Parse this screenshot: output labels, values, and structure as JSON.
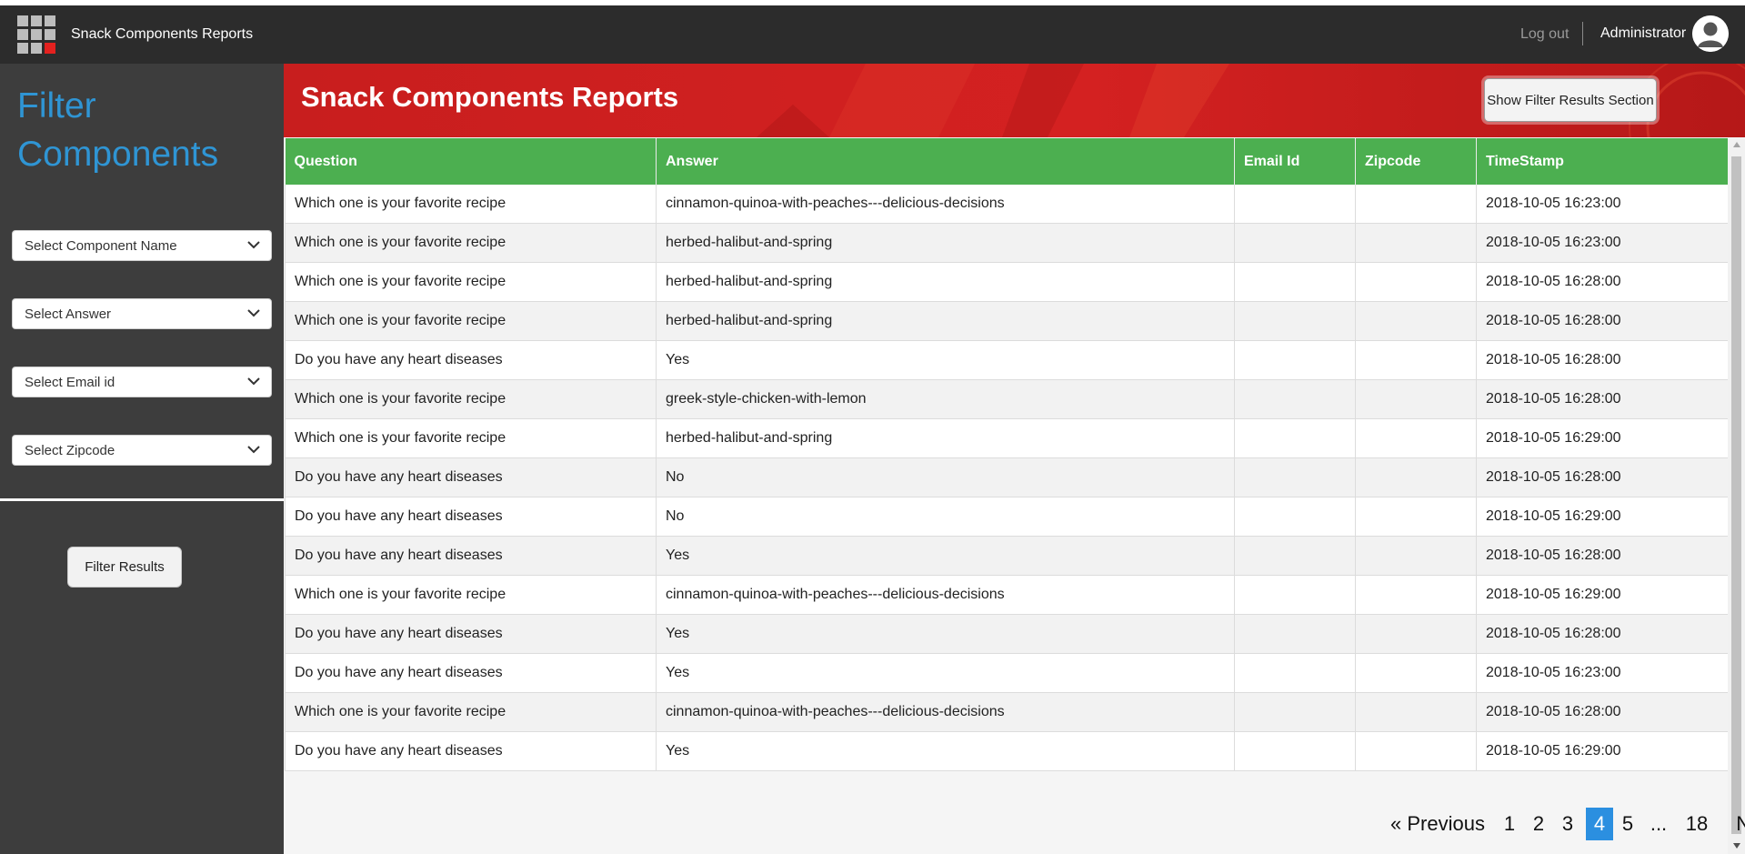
{
  "header": {
    "app_title": "Snack Components Reports",
    "logout_label": "Log out",
    "user_name": "Administrator"
  },
  "sidebar": {
    "title": "Filter Components",
    "selects": [
      {
        "label": "Select Component Name"
      },
      {
        "label": "Select Answer"
      },
      {
        "label": "Select Email id"
      },
      {
        "label": "Select Zipcode"
      }
    ],
    "filter_button_label": "Filter Results"
  },
  "main": {
    "page_title": "Snack Components Reports",
    "show_filter_button_label": "Show Filter Results Section"
  },
  "table": {
    "columns": [
      "Question",
      "Answer",
      "Email Id",
      "Zipcode",
      "TimeStamp"
    ],
    "rows": [
      {
        "question": "Which one is your favorite recipe",
        "answer": "cinnamon-quinoa-with-peaches---delicious-decisions",
        "email": "",
        "zipcode": "",
        "timestamp": "2018-10-05 16:23:00"
      },
      {
        "question": "Which one is your favorite recipe",
        "answer": "herbed-halibut-and-spring",
        "email": "",
        "zipcode": "",
        "timestamp": "2018-10-05 16:23:00"
      },
      {
        "question": "Which one is your favorite recipe",
        "answer": "herbed-halibut-and-spring",
        "email": "",
        "zipcode": "",
        "timestamp": "2018-10-05 16:28:00"
      },
      {
        "question": "Which one is your favorite recipe",
        "answer": "herbed-halibut-and-spring",
        "email": "",
        "zipcode": "",
        "timestamp": "2018-10-05 16:28:00"
      },
      {
        "question": "Do you have any heart diseases",
        "answer": "Yes",
        "email": "",
        "zipcode": "",
        "timestamp": "2018-10-05 16:28:00"
      },
      {
        "question": "Which one is your favorite recipe",
        "answer": "greek-style-chicken-with-lemon",
        "email": "",
        "zipcode": "",
        "timestamp": "2018-10-05 16:28:00"
      },
      {
        "question": "Which one is your favorite recipe",
        "answer": "herbed-halibut-and-spring",
        "email": "",
        "zipcode": "",
        "timestamp": "2018-10-05 16:29:00"
      },
      {
        "question": "Do you have any heart diseases",
        "answer": "No",
        "email": "",
        "zipcode": "",
        "timestamp": "2018-10-05 16:28:00"
      },
      {
        "question": "Do you have any heart diseases",
        "answer": "No",
        "email": "",
        "zipcode": "",
        "timestamp": "2018-10-05 16:29:00"
      },
      {
        "question": "Do you have any heart diseases",
        "answer": "Yes",
        "email": "",
        "zipcode": "",
        "timestamp": "2018-10-05 16:28:00"
      },
      {
        "question": "Which one is your favorite recipe",
        "answer": "cinnamon-quinoa-with-peaches---delicious-decisions",
        "email": "",
        "zipcode": "",
        "timestamp": "2018-10-05 16:29:00"
      },
      {
        "question": "Do you have any heart diseases",
        "answer": "Yes",
        "email": "",
        "zipcode": "",
        "timestamp": "2018-10-05 16:28:00"
      },
      {
        "question": "Do you have any heart diseases",
        "answer": "Yes",
        "email": "",
        "zipcode": "",
        "timestamp": "2018-10-05 16:23:00"
      },
      {
        "question": "Which one is your favorite recipe",
        "answer": "cinnamon-quinoa-with-peaches---delicious-decisions",
        "email": "",
        "zipcode": "",
        "timestamp": "2018-10-05 16:28:00"
      },
      {
        "question": "Do you have any heart diseases",
        "answer": "Yes",
        "email": "",
        "zipcode": "",
        "timestamp": "2018-10-05 16:29:00"
      }
    ]
  },
  "pagination": {
    "previous_label": "«  Previous",
    "pages": [
      "1",
      "2",
      "3",
      "4",
      "5",
      "...",
      "18"
    ],
    "current_page": "4",
    "next_label": "Next  »"
  },
  "colors": {
    "topbar": "#2c2c2c",
    "sidebar": "#3d3d3d",
    "filter_title": "#2f95d4",
    "banner_red": "#d42121",
    "table_header_green": "#4caf50",
    "active_page": "#2b8fe0"
  },
  "icons": {
    "app_logo": "grid-logo-icon",
    "avatar": "user-avatar-icon",
    "select_chevron": "chevron-down-icon"
  }
}
